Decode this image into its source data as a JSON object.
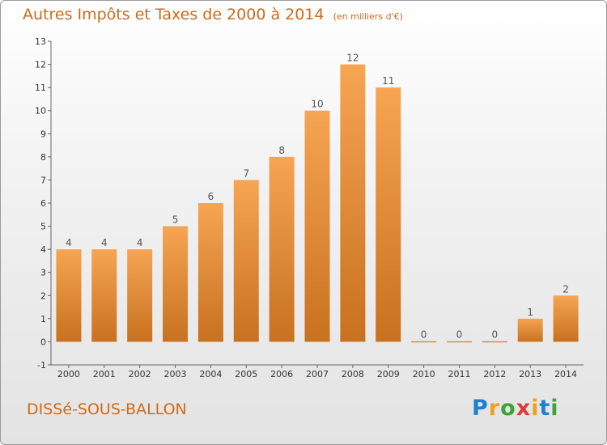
{
  "header": {
    "title": "Autres Impôts et Taxes de 2000 à 2014",
    "subtitle": "(en milliers d'€)"
  },
  "footer": {
    "city": "DISSé-SOUS-BALLON",
    "brand_letters": [
      {
        "ch": "P",
        "color": "#1f7fd0"
      },
      {
        "ch": "r",
        "color": "#f0a020"
      },
      {
        "ch": "o",
        "color": "#3aa33a"
      },
      {
        "ch": "x",
        "color": "#e03a3a"
      },
      {
        "ch": "i",
        "color": "#f0a020"
      },
      {
        "ch": "t",
        "color": "#1f7fd0"
      },
      {
        "ch": "i",
        "color": "#3aa33a"
      }
    ]
  },
  "colors": {
    "bar_light": "#f6a553",
    "bar_dark": "#c8711f",
    "title": "#d06a1a"
  },
  "chart_data": {
    "type": "bar",
    "categories": [
      "2000",
      "2001",
      "2002",
      "2003",
      "2004",
      "2005",
      "2006",
      "2007",
      "2008",
      "2009",
      "2010",
      "2011",
      "2012",
      "2013",
      "2014"
    ],
    "values": [
      4,
      4,
      4,
      5,
      6,
      7,
      8,
      10,
      12,
      11,
      0,
      0,
      0,
      1,
      2
    ],
    "ylim": [
      -1,
      13
    ],
    "yticks": [
      -1,
      0,
      1,
      2,
      3,
      4,
      5,
      6,
      7,
      8,
      9,
      10,
      11,
      12,
      13
    ],
    "grid": false
  }
}
